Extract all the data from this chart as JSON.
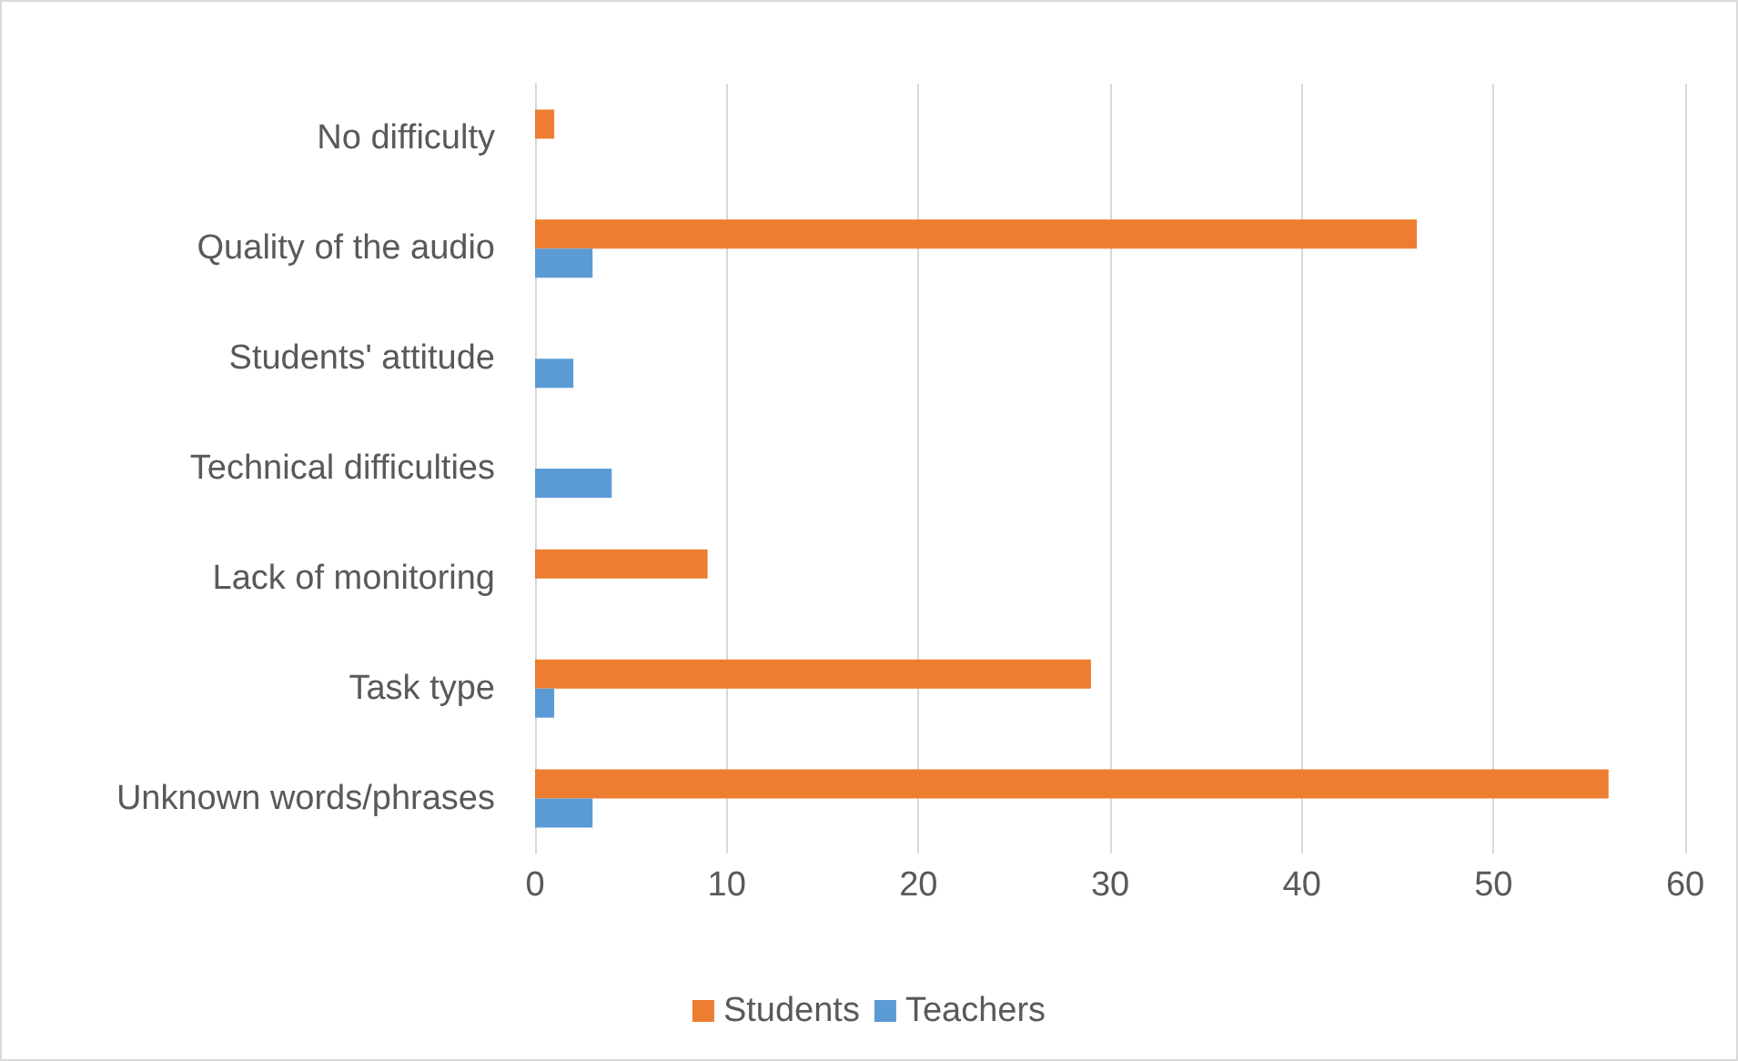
{
  "chart_data": {
    "type": "bar",
    "orientation": "horizontal",
    "categories": [
      "No difficulty",
      "Quality of the audio",
      "Students' attitude",
      "Technical difficulties",
      "Lack of monitoring",
      "Task type",
      "Unknown words/phrases"
    ],
    "series": [
      {
        "name": "Students",
        "color": "#ed7d31",
        "values": [
          1,
          46,
          null,
          null,
          9,
          29,
          56
        ]
      },
      {
        "name": "Teachers",
        "color": "#5b9bd5",
        "values": [
          null,
          3,
          2,
          4,
          null,
          1,
          3
        ]
      }
    ],
    "xlim": [
      0,
      60
    ],
    "xticks": [
      0,
      10,
      20,
      30,
      40,
      50,
      60
    ],
    "grid": "x",
    "legend": "bottom"
  }
}
